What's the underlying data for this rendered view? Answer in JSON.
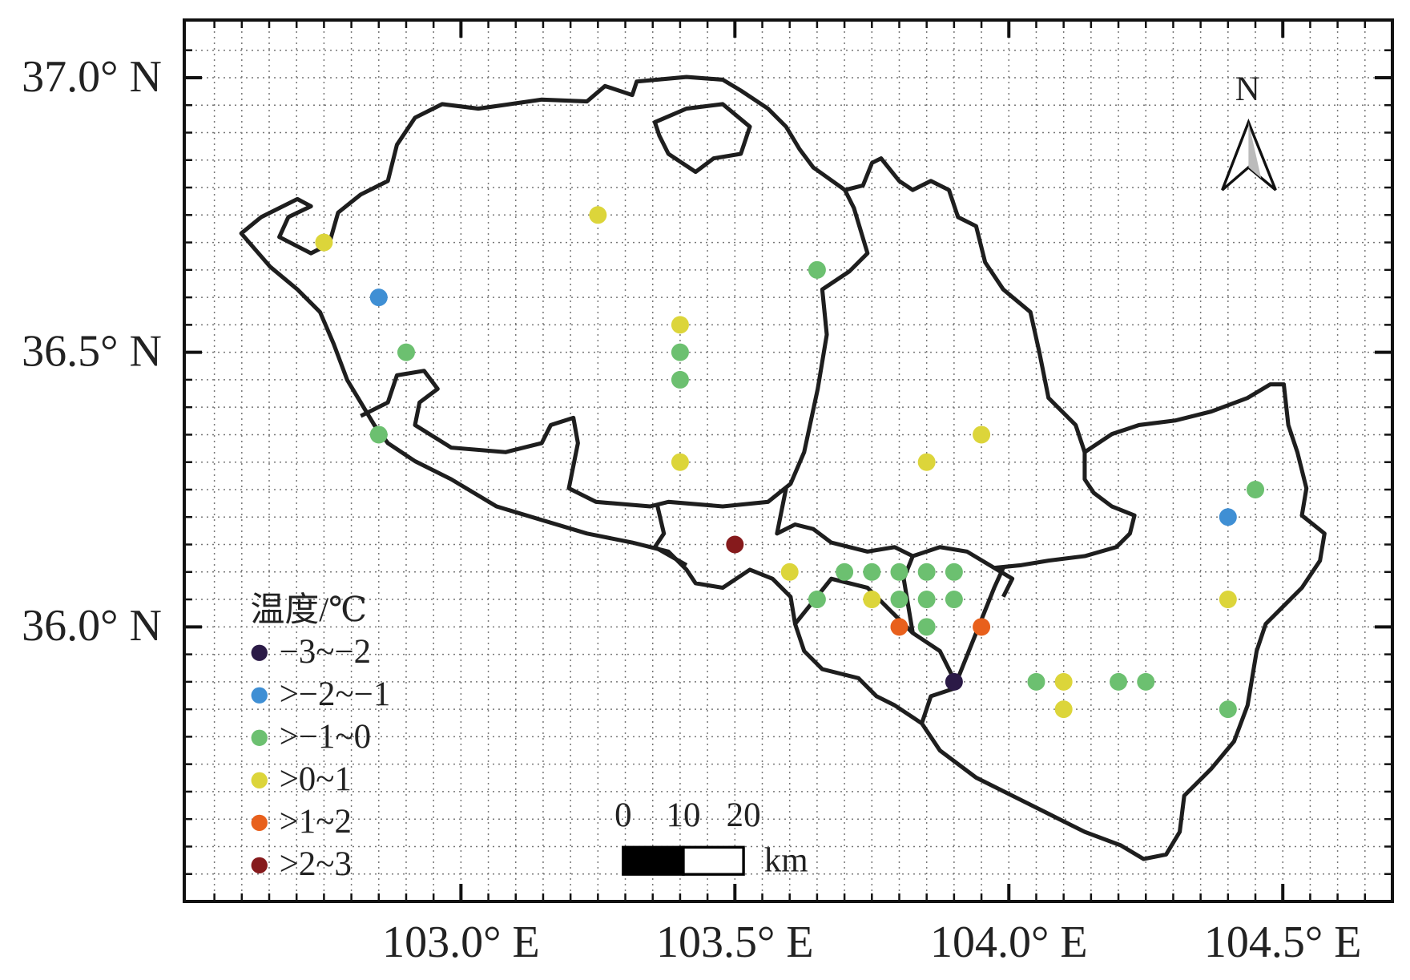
{
  "chart_data": {
    "type": "scatter",
    "legend_title": "温度/℃",
    "north_label": "N",
    "scale_bar": {
      "ticks": [
        0,
        10,
        20
      ],
      "unit": "km"
    },
    "xlim": [
      102.495,
      104.7
    ],
    "ylim": [
      35.5,
      37.105
    ],
    "xticks": [
      {
        "value": 103,
        "label": "103.0° E"
      },
      {
        "value": 103.5,
        "label": "103.5° E"
      },
      {
        "value": 104,
        "label": "104.0° E"
      },
      {
        "value": 104.5,
        "label": "104.5° E"
      }
    ],
    "yticks": [
      {
        "value": 36,
        "label": "36.0° N"
      },
      {
        "value": 36.5,
        "label": "36.5° N"
      },
      {
        "value": 37,
        "label": "37.0° N"
      }
    ],
    "grid": true,
    "xgrid": [
      102.55,
      102.6,
      102.65,
      102.7,
      102.75,
      102.8,
      102.85,
      102.9,
      102.95,
      103,
      103.05,
      103.1,
      103.15,
      103.2,
      103.25,
      103.3,
      103.35,
      103.4,
      103.45,
      103.5,
      103.55,
      103.6,
      103.65,
      103.7,
      103.75,
      103.8,
      103.85,
      103.9,
      103.95,
      104,
      104.05,
      104.1,
      104.15,
      104.2,
      104.25,
      104.3,
      104.35,
      104.4,
      104.45,
      104.5,
      104.55,
      104.6,
      104.65
    ],
    "ygrid": [
      35.55,
      35.6,
      35.65,
      35.7,
      35.75,
      35.8,
      35.85,
      35.9,
      35.95,
      36,
      36.05,
      36.1,
      36.15,
      36.2,
      36.25,
      36.3,
      36.35,
      36.4,
      36.45,
      36.5,
      36.55,
      36.6,
      36.65,
      36.7,
      36.75,
      36.8,
      36.85,
      36.9,
      36.95,
      37,
      37.05
    ],
    "series": [
      {
        "name": "−3~−2",
        "color": "#2b1a47",
        "x": [
          103.9
        ],
        "values": [
          35.9
        ]
      },
      {
        "name": ">−2~−1",
        "color": "#3f8fd4",
        "x": [
          102.85,
          104.4
        ],
        "values": [
          36.6,
          36.2
        ]
      },
      {
        "name": ">−1~0",
        "color": "#6cc070",
        "x": [
          103.65,
          103.4,
          102.9,
          103.4,
          102.85,
          104.45,
          103.7,
          103.75,
          103.8,
          103.85,
          103.9,
          103.65,
          103.8,
          103.85,
          103.9,
          103.85,
          104.05,
          104.2,
          104.25,
          104.4
        ],
        "values": [
          36.65,
          36.5,
          36.5,
          36.45,
          36.35,
          36.25,
          36.1,
          36.1,
          36.1,
          36.1,
          36.1,
          36.05,
          36.05,
          36.05,
          36.05,
          36.0,
          35.9,
          35.9,
          35.9,
          35.85
        ]
      },
      {
        "name": ">0~1",
        "color": "#dcd53a",
        "x": [
          103.25,
          102.75,
          103.4,
          103.95,
          103.4,
          103.85,
          103.6,
          103.75,
          104.4,
          104.1,
          104.1
        ],
        "values": [
          36.75,
          36.7,
          36.55,
          36.35,
          36.3,
          36.3,
          36.1,
          36.05,
          36.05,
          35.9,
          35.85
        ]
      },
      {
        "name": ">1~2",
        "color": "#e8601c",
        "x": [
          103.8,
          103.95
        ],
        "values": [
          36.0,
          36.0
        ]
      },
      {
        "name": ">2~3",
        "color": "#861a1c",
        "x": [
          103.5
        ],
        "values": [
          36.15
        ]
      }
    ]
  }
}
